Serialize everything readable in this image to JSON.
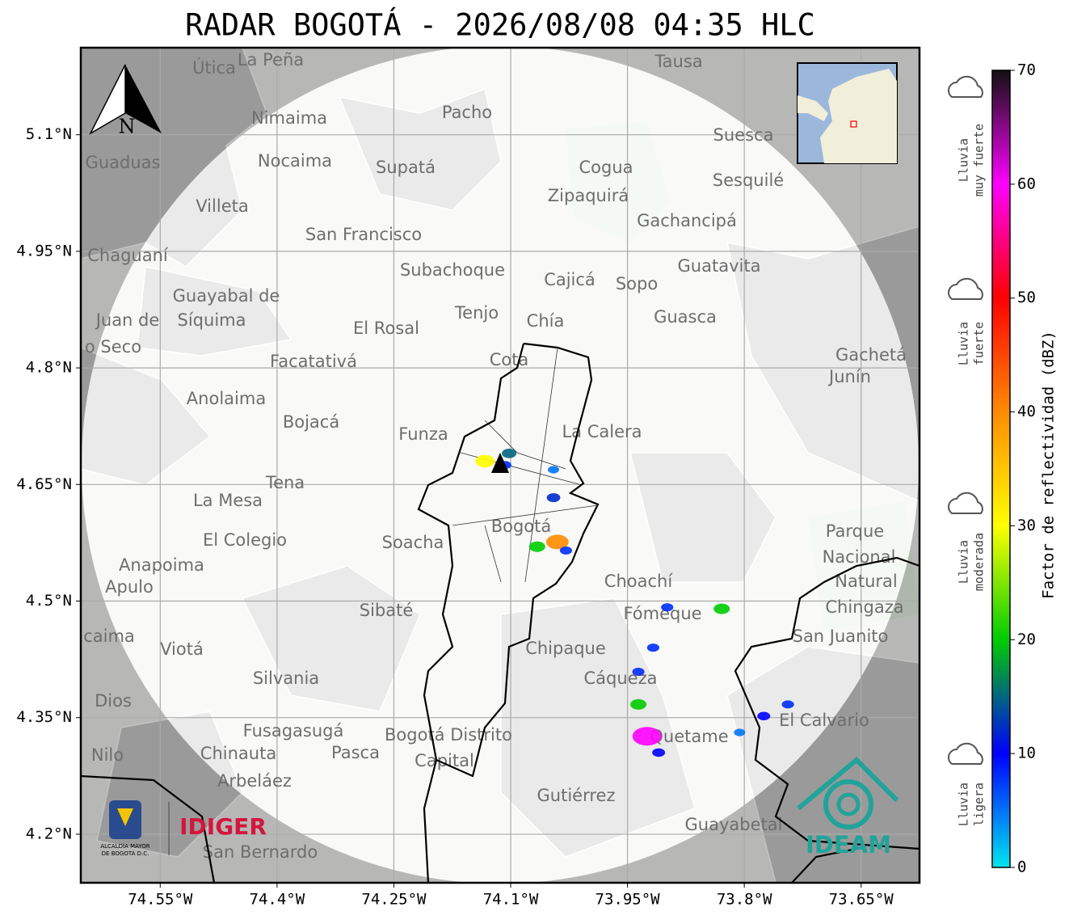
{
  "title": "RADAR BOGOTÁ - 2026/08/08 04:35 HLC",
  "map": {
    "xlim": [
      -74.652,
      -73.575
    ],
    "ylim": [
      4.1375,
      5.212
    ],
    "xticks": [
      {
        "value": -74.55,
        "label": "74.55°W"
      },
      {
        "value": -74.4,
        "label": "74.4°W"
      },
      {
        "value": -74.25,
        "label": "74.25°W"
      },
      {
        "value": -74.1,
        "label": "74.1°W"
      },
      {
        "value": -73.95,
        "label": "73.95°W"
      },
      {
        "value": -73.8,
        "label": "73.8°W"
      },
      {
        "value": -73.65,
        "label": "73.65°W"
      }
    ],
    "yticks": [
      {
        "value": 5.1,
        "label": "5.1°N"
      },
      {
        "value": 4.95,
        "label": "4.95°N"
      },
      {
        "value": 4.8,
        "label": "4.8°N"
      },
      {
        "value": 4.65,
        "label": "4.65°N"
      },
      {
        "value": 4.5,
        "label": "4.5°N"
      },
      {
        "value": 4.35,
        "label": "4.35°N"
      },
      {
        "value": 4.2,
        "label": "4.2°N"
      }
    ],
    "grid": true
  },
  "north": "N",
  "places": [
    "La Peña",
    "Útica",
    "Tausa",
    "Pacho",
    "Nimaima",
    "Suesca",
    "Guaduas",
    "Nocaima",
    "Supatá",
    "Cogua",
    "Sesquilé",
    "Zipaquirá",
    "Villeta",
    "Gachancipá",
    "San Francisco",
    "Chaguaní",
    "Guatavita",
    "Subachoque",
    "Cajicá",
    "Sopo",
    "Guayabal de",
    "Síquima",
    "Tenjo",
    "Guasca",
    "Juan de",
    "Chía",
    "El Rosal",
    "o Seco",
    "Cota",
    "Gachetá",
    "Facatativá",
    "Junín",
    "Anolaima",
    "Bojacá",
    "Funza",
    "La Calera",
    "Tena",
    "La Mesa",
    "Bogotá",
    "Parque",
    "El Colegio",
    "Soacha",
    "Nacional",
    "Anapoima",
    "Apulo",
    "Choachí",
    "Natural",
    "Chingaza",
    "Sibaté",
    "Fómeque",
    "San Juanito",
    "caima",
    "Viotá",
    "Chipaque",
    "Silvania",
    "Cáqueza",
    "Dios",
    "El Calvario",
    "Fusagasugá",
    "Bogotá Distrito",
    "Quetame",
    "Nilo",
    "Chinauta",
    "Pasca",
    "Capital",
    "Arbeláez",
    "Gutiérrez",
    "Guayabetal",
    "San Bernardo"
  ],
  "echoes": [
    {
      "lon": -74.102,
      "lat": 4.69,
      "dbz": 15
    },
    {
      "lon": -74.107,
      "lat": 4.675,
      "dbz": 8
    },
    {
      "lon": -74.133,
      "lat": 4.68,
      "dbz": 30
    },
    {
      "lon": -74.045,
      "lat": 4.669,
      "dbz": 5
    },
    {
      "lon": -74.045,
      "lat": 4.633,
      "dbz": 12
    },
    {
      "lon": -74.04,
      "lat": 4.576,
      "dbz": 40
    },
    {
      "lon": -74.029,
      "lat": 4.565,
      "dbz": 8
    },
    {
      "lon": -74.066,
      "lat": 4.57,
      "dbz": 20
    },
    {
      "lon": -73.936,
      "lat": 4.409,
      "dbz": 8
    },
    {
      "lon": -73.917,
      "lat": 4.44,
      "dbz": 8
    },
    {
      "lon": -73.936,
      "lat": 4.367,
      "dbz": 20
    },
    {
      "lon": -73.925,
      "lat": 4.326,
      "dbz": 60
    },
    {
      "lon": -73.91,
      "lat": 4.305,
      "dbz": 10
    },
    {
      "lon": -73.744,
      "lat": 4.367,
      "dbz": 8
    },
    {
      "lon": -73.775,
      "lat": 4.352,
      "dbz": 10
    },
    {
      "lon": -73.806,
      "lat": 4.331,
      "dbz": 5
    },
    {
      "lon": -73.829,
      "lat": 4.49,
      "dbz": 20
    },
    {
      "lon": -73.899,
      "lat": 4.492,
      "dbz": 8
    }
  ],
  "colorbar": {
    "label": "Factor de reflectividad (dBZ)",
    "lim": [
      0,
      70
    ],
    "ticks": [
      0,
      10,
      20,
      30,
      40,
      50,
      60,
      70
    ],
    "colors": [
      "#00e5ee",
      "#0000ff",
      "#00cc00",
      "#ffff00",
      "#ff8c00",
      "#ff0000",
      "#ff00ff",
      "#111111"
    ]
  },
  "intensity": [
    {
      "line1": "Lluvia",
      "line2": "muy fuerte"
    },
    {
      "line1": "Lluvia",
      "line2": "fuerte"
    },
    {
      "line1": "Lluvia",
      "line2": "moderada"
    },
    {
      "line1": "Lluvia",
      "line2": "ligera"
    }
  ],
  "logos": {
    "alcaldia1": "ALCALDÍA MAYOR",
    "alcaldia2": "DE BOGOTÁ D.C.",
    "idiger": "IDIGER",
    "ideam": "IDEAM"
  }
}
